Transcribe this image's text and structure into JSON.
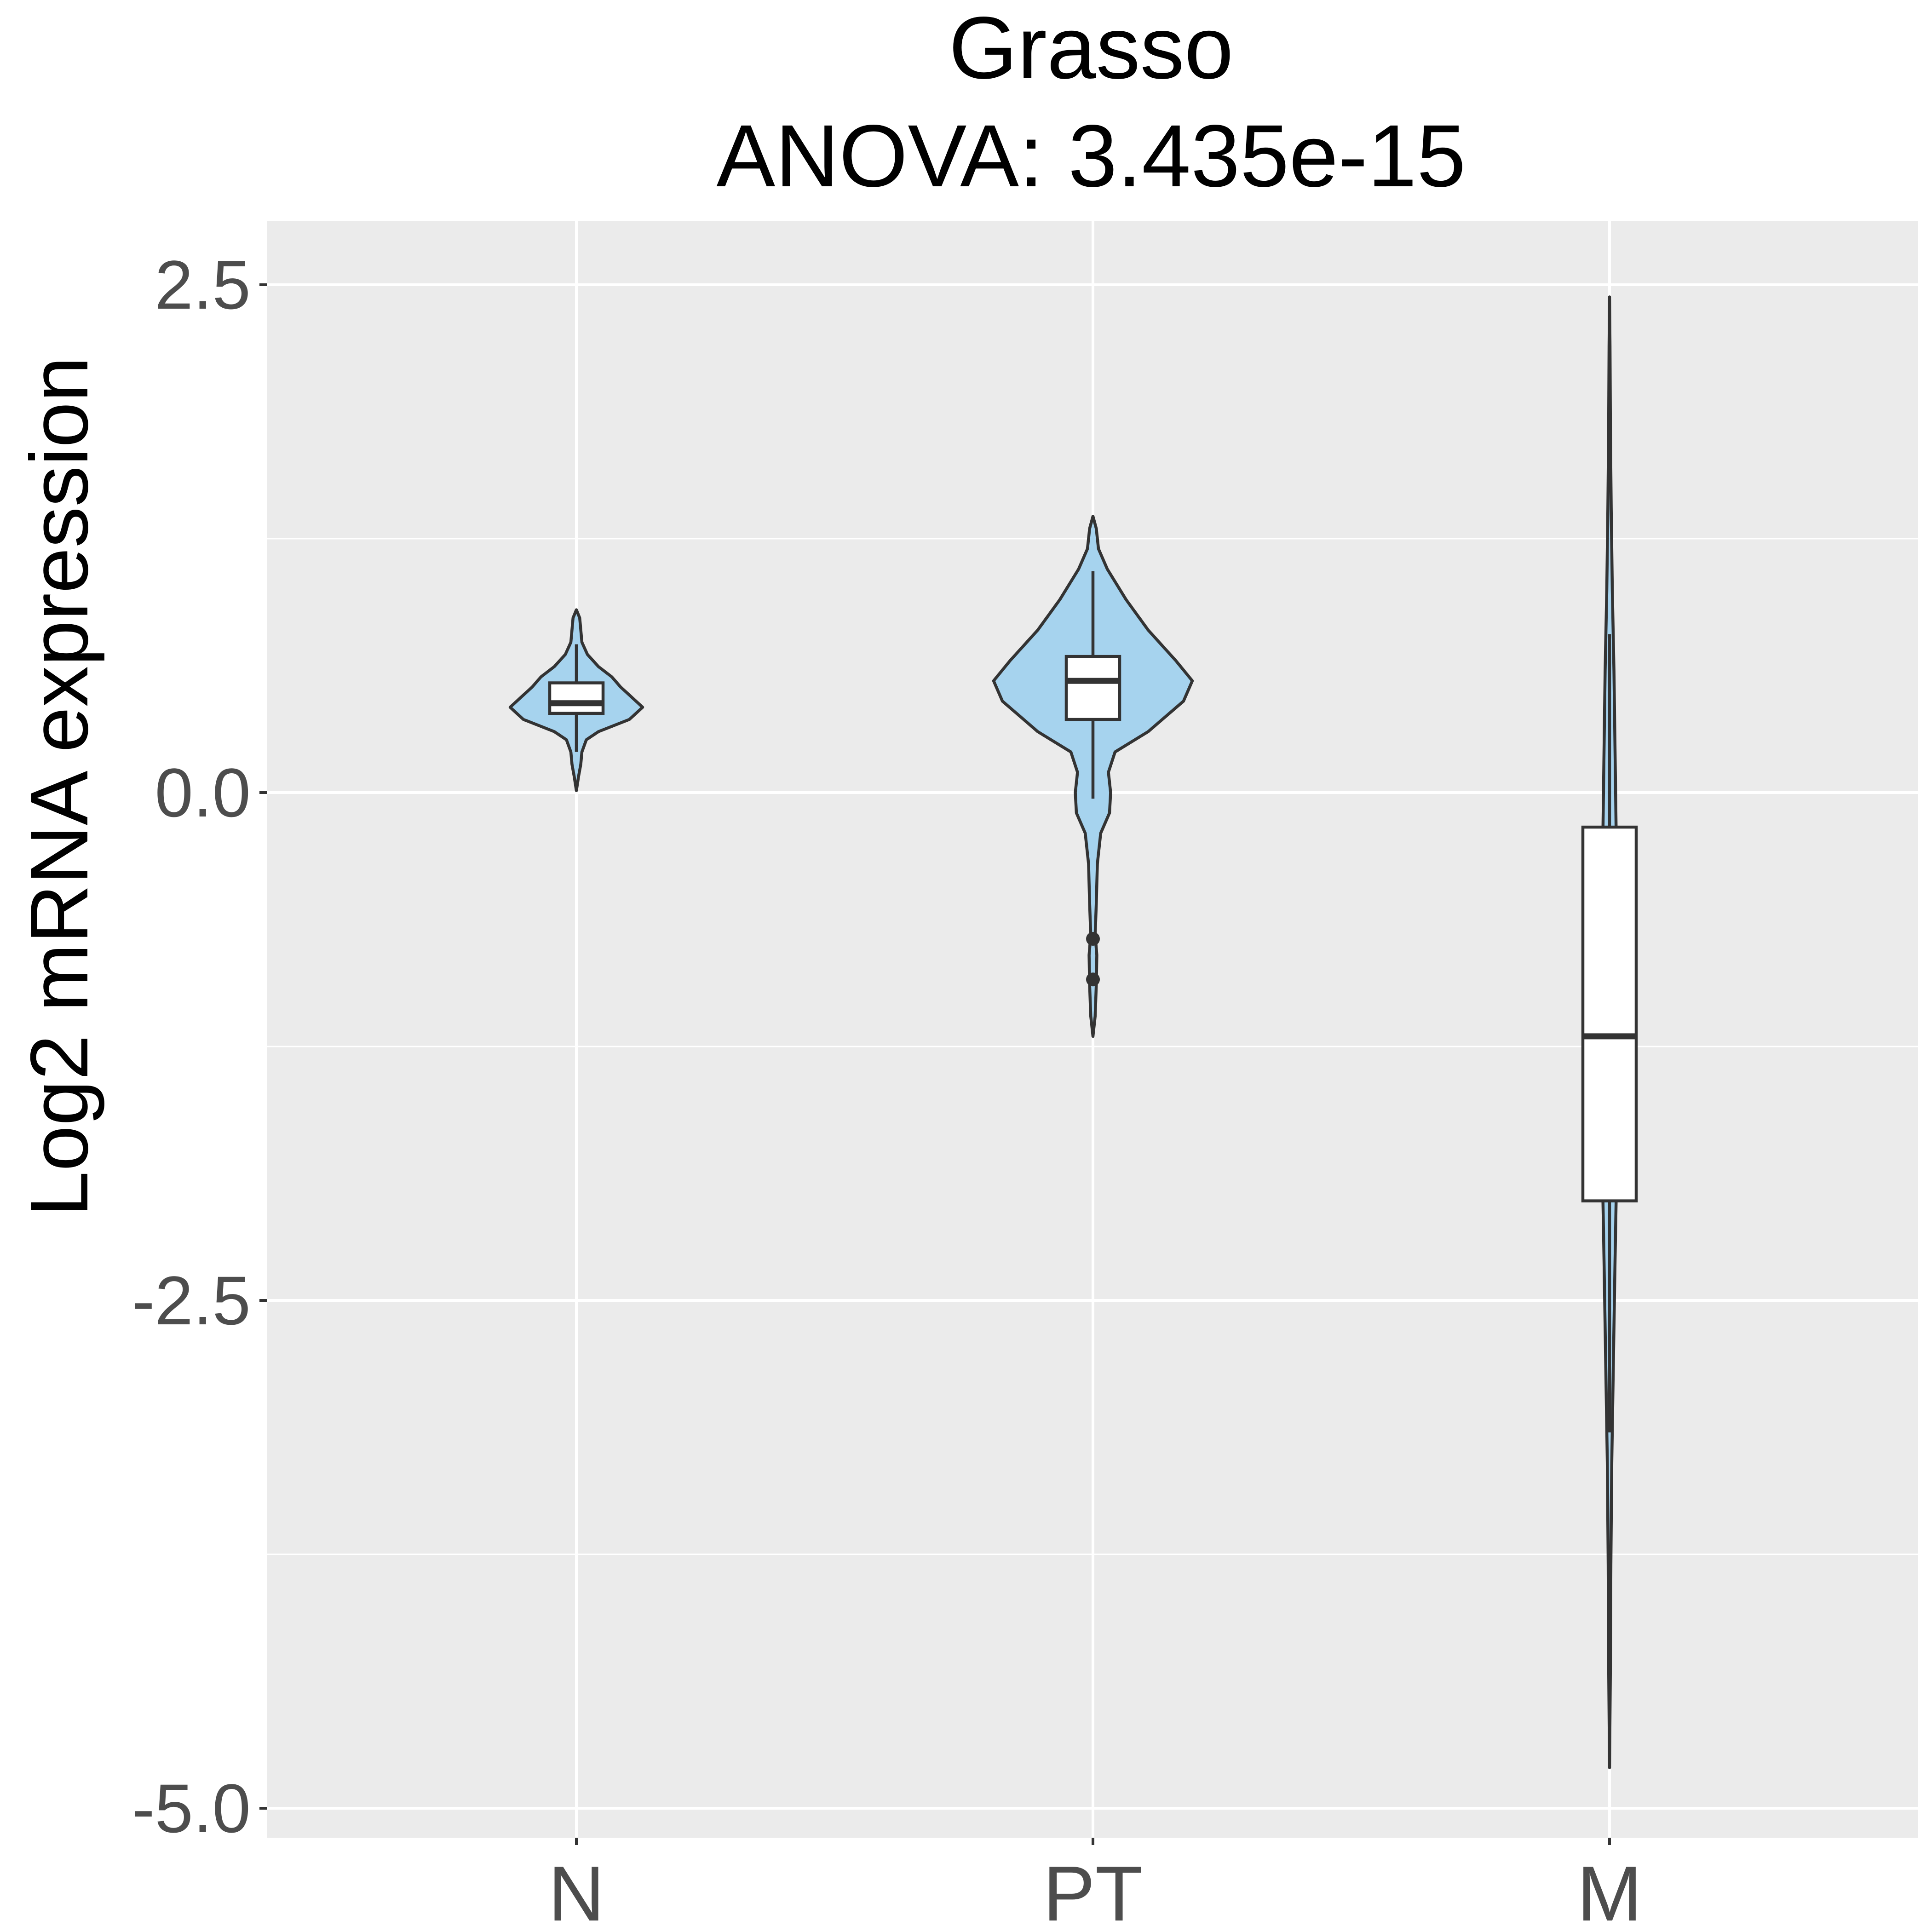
{
  "chart_data": {
    "type": "violin",
    "title": "Grasso",
    "subtitle": "ANOVA: 3.435e-15",
    "xlabel": "",
    "ylabel": "Log2 mRNA expression",
    "categories": [
      "N",
      "PT",
      "M"
    ],
    "ylim": [
      -5.3,
      2.8
    ],
    "yticks": [
      2.5,
      0.0,
      -2.5,
      -5.0
    ],
    "ytick_labels": [
      "2.5",
      "0.0",
      "-2.5",
      "-5.0"
    ],
    "grid": true,
    "legend": "none",
    "colors": {
      "panel": "#ebebeb",
      "grid": "#ffffff",
      "violin_fill": "#a6d3ee",
      "outline": "#333333",
      "box_fill": "#ffffff",
      "tick_text": "#4d4d4d"
    },
    "groups": [
      {
        "name": "N",
        "box": {
          "q1": 0.39,
          "median": 0.44,
          "q3": 0.54,
          "whisker_low": 0.2,
          "whisker_high": 0.73
        },
        "outliers": [],
        "violin": [
          [
            0.01,
            0.0
          ],
          [
            0.08,
            0.02
          ],
          [
            0.14,
            0.04
          ],
          [
            0.2,
            0.05
          ],
          [
            0.26,
            0.09
          ],
          [
            0.3,
            0.2
          ],
          [
            0.36,
            0.48
          ],
          [
            0.42,
            0.6
          ],
          [
            0.47,
            0.5
          ],
          [
            0.52,
            0.4
          ],
          [
            0.57,
            0.32
          ],
          [
            0.62,
            0.2
          ],
          [
            0.68,
            0.1
          ],
          [
            0.74,
            0.05
          ],
          [
            0.8,
            0.04
          ],
          [
            0.86,
            0.03
          ],
          [
            0.9,
            0.0
          ]
        ]
      },
      {
        "name": "PT",
        "box": {
          "q1": 0.36,
          "median": 0.55,
          "q3": 0.67,
          "whisker_low": -0.03,
          "whisker_high": 1.09
        },
        "outliers": [
          -0.72,
          -0.92
        ],
        "violin": [
          [
            -1.2,
            0.0
          ],
          [
            -1.1,
            0.02
          ],
          [
            -0.95,
            0.03
          ],
          [
            -0.8,
            0.035
          ],
          [
            -0.7,
            0.02
          ],
          [
            -0.55,
            0.03
          ],
          [
            -0.35,
            0.04
          ],
          [
            -0.2,
            0.07
          ],
          [
            -0.1,
            0.15
          ],
          [
            0.0,
            0.16
          ],
          [
            0.1,
            0.14
          ],
          [
            0.2,
            0.2
          ],
          [
            0.3,
            0.5
          ],
          [
            0.45,
            0.82
          ],
          [
            0.55,
            0.9
          ],
          [
            0.65,
            0.75
          ],
          [
            0.8,
            0.5
          ],
          [
            0.95,
            0.3
          ],
          [
            1.1,
            0.13
          ],
          [
            1.2,
            0.05
          ],
          [
            1.3,
            0.03
          ],
          [
            1.36,
            0.0
          ]
        ]
      },
      {
        "name": "M",
        "box": {
          "q1": -2.01,
          "median": -1.2,
          "q3": -0.17,
          "whisker_low": -3.15,
          "whisker_high": 0.78
        },
        "outliers": [],
        "violin": [
          [
            -4.8,
            0.0
          ],
          [
            -4.3,
            0.008
          ],
          [
            -3.8,
            0.012
          ],
          [
            -3.3,
            0.02
          ],
          [
            -2.8,
            0.035
          ],
          [
            -2.3,
            0.05
          ],
          [
            -2.0,
            0.06
          ],
          [
            -1.7,
            0.07
          ],
          [
            -1.4,
            0.075
          ],
          [
            -1.1,
            0.075
          ],
          [
            -0.8,
            0.07
          ],
          [
            -0.5,
            0.065
          ],
          [
            -0.2,
            0.06
          ],
          [
            0.2,
            0.05
          ],
          [
            0.6,
            0.04
          ],
          [
            1.0,
            0.025
          ],
          [
            1.4,
            0.015
          ],
          [
            1.8,
            0.008
          ],
          [
            2.2,
            0.004
          ],
          [
            2.44,
            0.0
          ]
        ]
      }
    ]
  }
}
